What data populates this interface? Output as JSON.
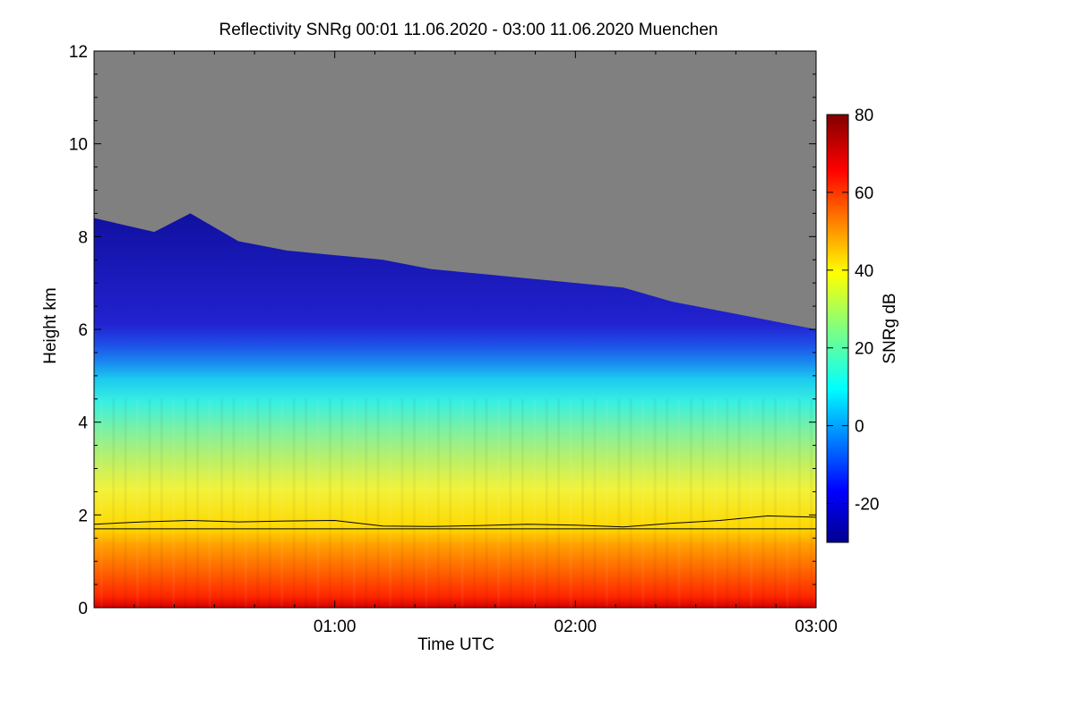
{
  "chart_data": {
    "type": "heatmap",
    "title": "Reflectivity SNRg   00:01 11.06.2020 - 03:00 11.06.2020 Muenchen",
    "xlabel": "Time UTC",
    "ylabel": "Height km",
    "colorbar_label": "SNRg dB",
    "xlim_hours": [
      0.0,
      3.0
    ],
    "ylim_km": [
      0,
      12
    ],
    "x_ticks": [
      {
        "value": 1.0,
        "label": "01:00"
      },
      {
        "value": 2.0,
        "label": "02:00"
      },
      {
        "value": 3.0,
        "label": "03:00"
      }
    ],
    "y_ticks": [
      {
        "value": 0,
        "label": "0"
      },
      {
        "value": 2,
        "label": "2"
      },
      {
        "value": 4,
        "label": "4"
      },
      {
        "value": 6,
        "label": "6"
      },
      {
        "value": 8,
        "label": "8"
      },
      {
        "value": 10,
        "label": "10"
      },
      {
        "value": 12,
        "label": "12"
      }
    ],
    "colorbar": {
      "range_db": [
        -30,
        80
      ],
      "ticks": [
        {
          "value": -20,
          "label": "-20"
        },
        {
          "value": 0,
          "label": "0"
        },
        {
          "value": 20,
          "label": "20"
        },
        {
          "value": 40,
          "label": "40"
        },
        {
          "value": 60,
          "label": "60"
        },
        {
          "value": 80,
          "label": "80"
        }
      ]
    },
    "no_signal_color": "#808080",
    "signal_top_km": {
      "hours": [
        0.0,
        0.25,
        0.4,
        0.6,
        0.8,
        1.0,
        1.2,
        1.4,
        1.6,
        1.8,
        2.0,
        2.2,
        2.4,
        2.6,
        2.8,
        3.0
      ],
      "values": [
        8.4,
        8.1,
        8.5,
        7.9,
        7.7,
        7.6,
        7.5,
        7.3,
        7.2,
        7.1,
        7.0,
        6.9,
        6.6,
        6.4,
        6.2,
        6.0
      ]
    },
    "mixing_layer_km": {
      "hours": [
        0.0,
        0.2,
        0.4,
        0.6,
        0.8,
        1.0,
        1.2,
        1.4,
        1.6,
        1.8,
        2.0,
        2.2,
        2.4,
        2.6,
        2.8,
        3.0
      ],
      "values": [
        1.8,
        1.85,
        1.88,
        1.85,
        1.87,
        1.88,
        1.76,
        1.75,
        1.77,
        1.8,
        1.78,
        1.74,
        1.82,
        1.88,
        1.98,
        1.95
      ]
    },
    "reference_line_km": 1.7
  }
}
